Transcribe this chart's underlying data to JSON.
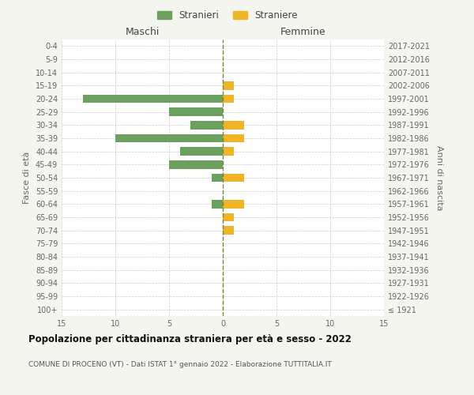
{
  "age_groups": [
    "100+",
    "95-99",
    "90-94",
    "85-89",
    "80-84",
    "75-79",
    "70-74",
    "65-69",
    "60-64",
    "55-59",
    "50-54",
    "45-49",
    "40-44",
    "35-39",
    "30-34",
    "25-29",
    "20-24",
    "15-19",
    "10-14",
    "5-9",
    "0-4"
  ],
  "birth_years": [
    "≤ 1921",
    "1922-1926",
    "1927-1931",
    "1932-1936",
    "1937-1941",
    "1942-1946",
    "1947-1951",
    "1952-1956",
    "1957-1961",
    "1962-1966",
    "1967-1971",
    "1972-1976",
    "1977-1981",
    "1982-1986",
    "1987-1991",
    "1992-1996",
    "1997-2001",
    "2002-2006",
    "2007-2011",
    "2012-2016",
    "2017-2021"
  ],
  "maschi": [
    0,
    0,
    0,
    0,
    0,
    0,
    0,
    0,
    1,
    0,
    1,
    5,
    4,
    10,
    3,
    5,
    13,
    0,
    0,
    0,
    0
  ],
  "femmine": [
    0,
    0,
    0,
    0,
    0,
    0,
    1,
    1,
    2,
    0,
    2,
    0,
    1,
    2,
    2,
    0,
    1,
    1,
    0,
    0,
    0
  ],
  "maschi_color": "#6d9f5e",
  "femmine_color": "#f0b429",
  "title": "Popolazione per cittadinanza straniera per età e sesso - 2022",
  "subtitle": "COMUNE DI PROCENO (VT) - Dati ISTAT 1° gennaio 2022 - Elaborazione TUTTITALIA.IT",
  "legend_maschi": "Stranieri",
  "legend_femmine": "Straniere",
  "ylabel_left": "Fasce di età",
  "ylabel_right": "Anni di nascita",
  "header_left": "Maschi",
  "header_right": "Femmine",
  "xlim": 15,
  "background_color": "#f5f5f0",
  "plot_bg": "#ffffff"
}
